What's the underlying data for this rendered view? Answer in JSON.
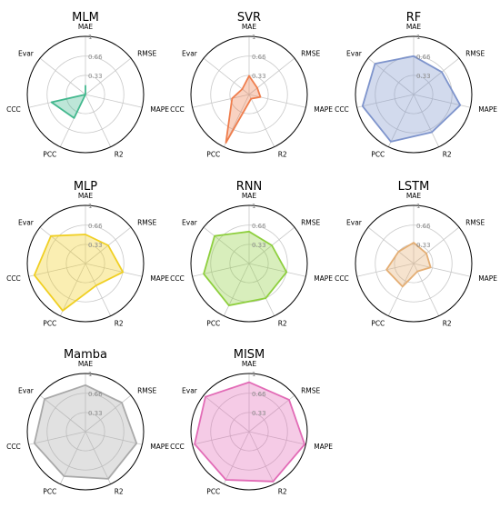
{
  "figure": {
    "axes": [
      "MAE",
      "RMSE",
      "MAPE",
      "R2",
      "PCC",
      "CCC",
      "Evar"
    ],
    "rticks": [
      "0.33",
      "0.66",
      "1"
    ],
    "rlim": [
      0,
      1
    ]
  },
  "chart_data": [
    {
      "type": "radar",
      "title": "MLM",
      "color": "#43b88e",
      "categories": [
        "MAE",
        "RMSE",
        "MAPE",
        "R2",
        "PCC",
        "CCC",
        "Evar"
      ],
      "values": [
        0.15,
        0.0,
        0.0,
        0.0,
        0.45,
        0.6,
        0.0
      ]
    },
    {
      "type": "radar",
      "title": "SVR",
      "color": "#ef7d4c",
      "categories": [
        "MAE",
        "RMSE",
        "MAPE",
        "R2",
        "PCC",
        "CCC",
        "Evar"
      ],
      "values": [
        0.32,
        0.18,
        0.2,
        0.08,
        0.92,
        0.3,
        0.15
      ]
    },
    {
      "type": "radar",
      "title": "RF",
      "color": "#7e94cc",
      "categories": [
        "MAE",
        "RMSE",
        "MAPE",
        "R2",
        "PCC",
        "CCC",
        "Evar"
      ],
      "values": [
        0.66,
        0.62,
        0.82,
        0.72,
        0.9,
        0.9,
        0.85
      ]
    },
    {
      "type": "radar",
      "title": "MLP",
      "color": "#f0cf22",
      "categories": [
        "MAE",
        "RMSE",
        "MAPE",
        "R2",
        "PCC",
        "CCC",
        "Evar"
      ],
      "values": [
        0.5,
        0.5,
        0.66,
        0.42,
        0.9,
        0.9,
        0.76
      ]
    },
    {
      "type": "radar",
      "title": "RNN",
      "color": "#8ecf3e",
      "categories": [
        "MAE",
        "RMSE",
        "MAPE",
        "R2",
        "PCC",
        "CCC",
        "Evar"
      ],
      "values": [
        0.55,
        0.5,
        0.66,
        0.66,
        0.8,
        0.8,
        0.76
      ]
    },
    {
      "type": "radar",
      "title": "LSTM",
      "color": "#e4ae74",
      "categories": [
        "MAE",
        "RMSE",
        "MAPE",
        "R2",
        "PCC",
        "CCC",
        "Evar"
      ],
      "values": [
        0.36,
        0.28,
        0.3,
        0.15,
        0.44,
        0.48,
        0.33
      ]
    },
    {
      "type": "radar",
      "title": "Mamba",
      "color": "#a9a9a9",
      "categories": [
        "MAE",
        "RMSE",
        "MAPE",
        "R2",
        "PCC",
        "CCC",
        "Evar"
      ],
      "values": [
        0.8,
        0.8,
        0.9,
        0.9,
        0.85,
        0.9,
        0.9
      ]
    },
    {
      "type": "radar",
      "title": "MISM",
      "color": "#e26bb6",
      "categories": [
        "MAE",
        "RMSE",
        "MAPE",
        "R2",
        "PCC",
        "CCC",
        "Evar"
      ],
      "values": [
        0.85,
        0.88,
        0.98,
        0.95,
        0.92,
        0.96,
        0.96
      ]
    }
  ]
}
